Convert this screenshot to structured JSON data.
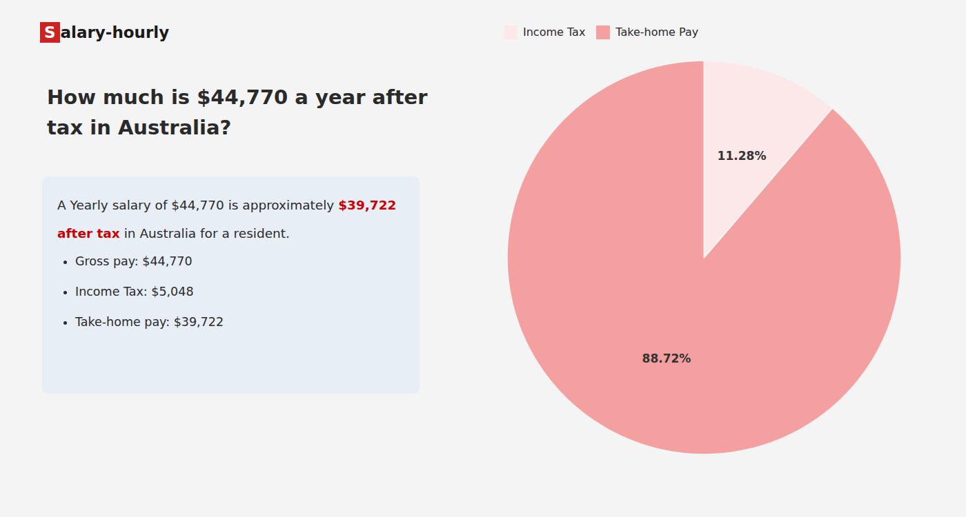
{
  "chart_data": {
    "type": "pie",
    "title": "How much is $44,770 a year after tax in Australia?",
    "annotations": [
      "Salary-hourly",
      "A Yearly salary of $44,770 is approximately",
      "$39,722 after tax",
      "in Australia for a resident.",
      "Gross pay: $44,770",
      "Income Tax: $5,048",
      "Take-home pay: $39,722"
    ],
    "categories": [
      "Income Tax",
      "Take-home Pay"
    ],
    "values": [
      11.28,
      88.72
    ],
    "value_labels": [
      "11.28%",
      "88.72%"
    ],
    "colors": [
      "#fce8e8",
      "#f4a0a0"
    ],
    "data_labels": true,
    "legend": "upper left"
  }
}
